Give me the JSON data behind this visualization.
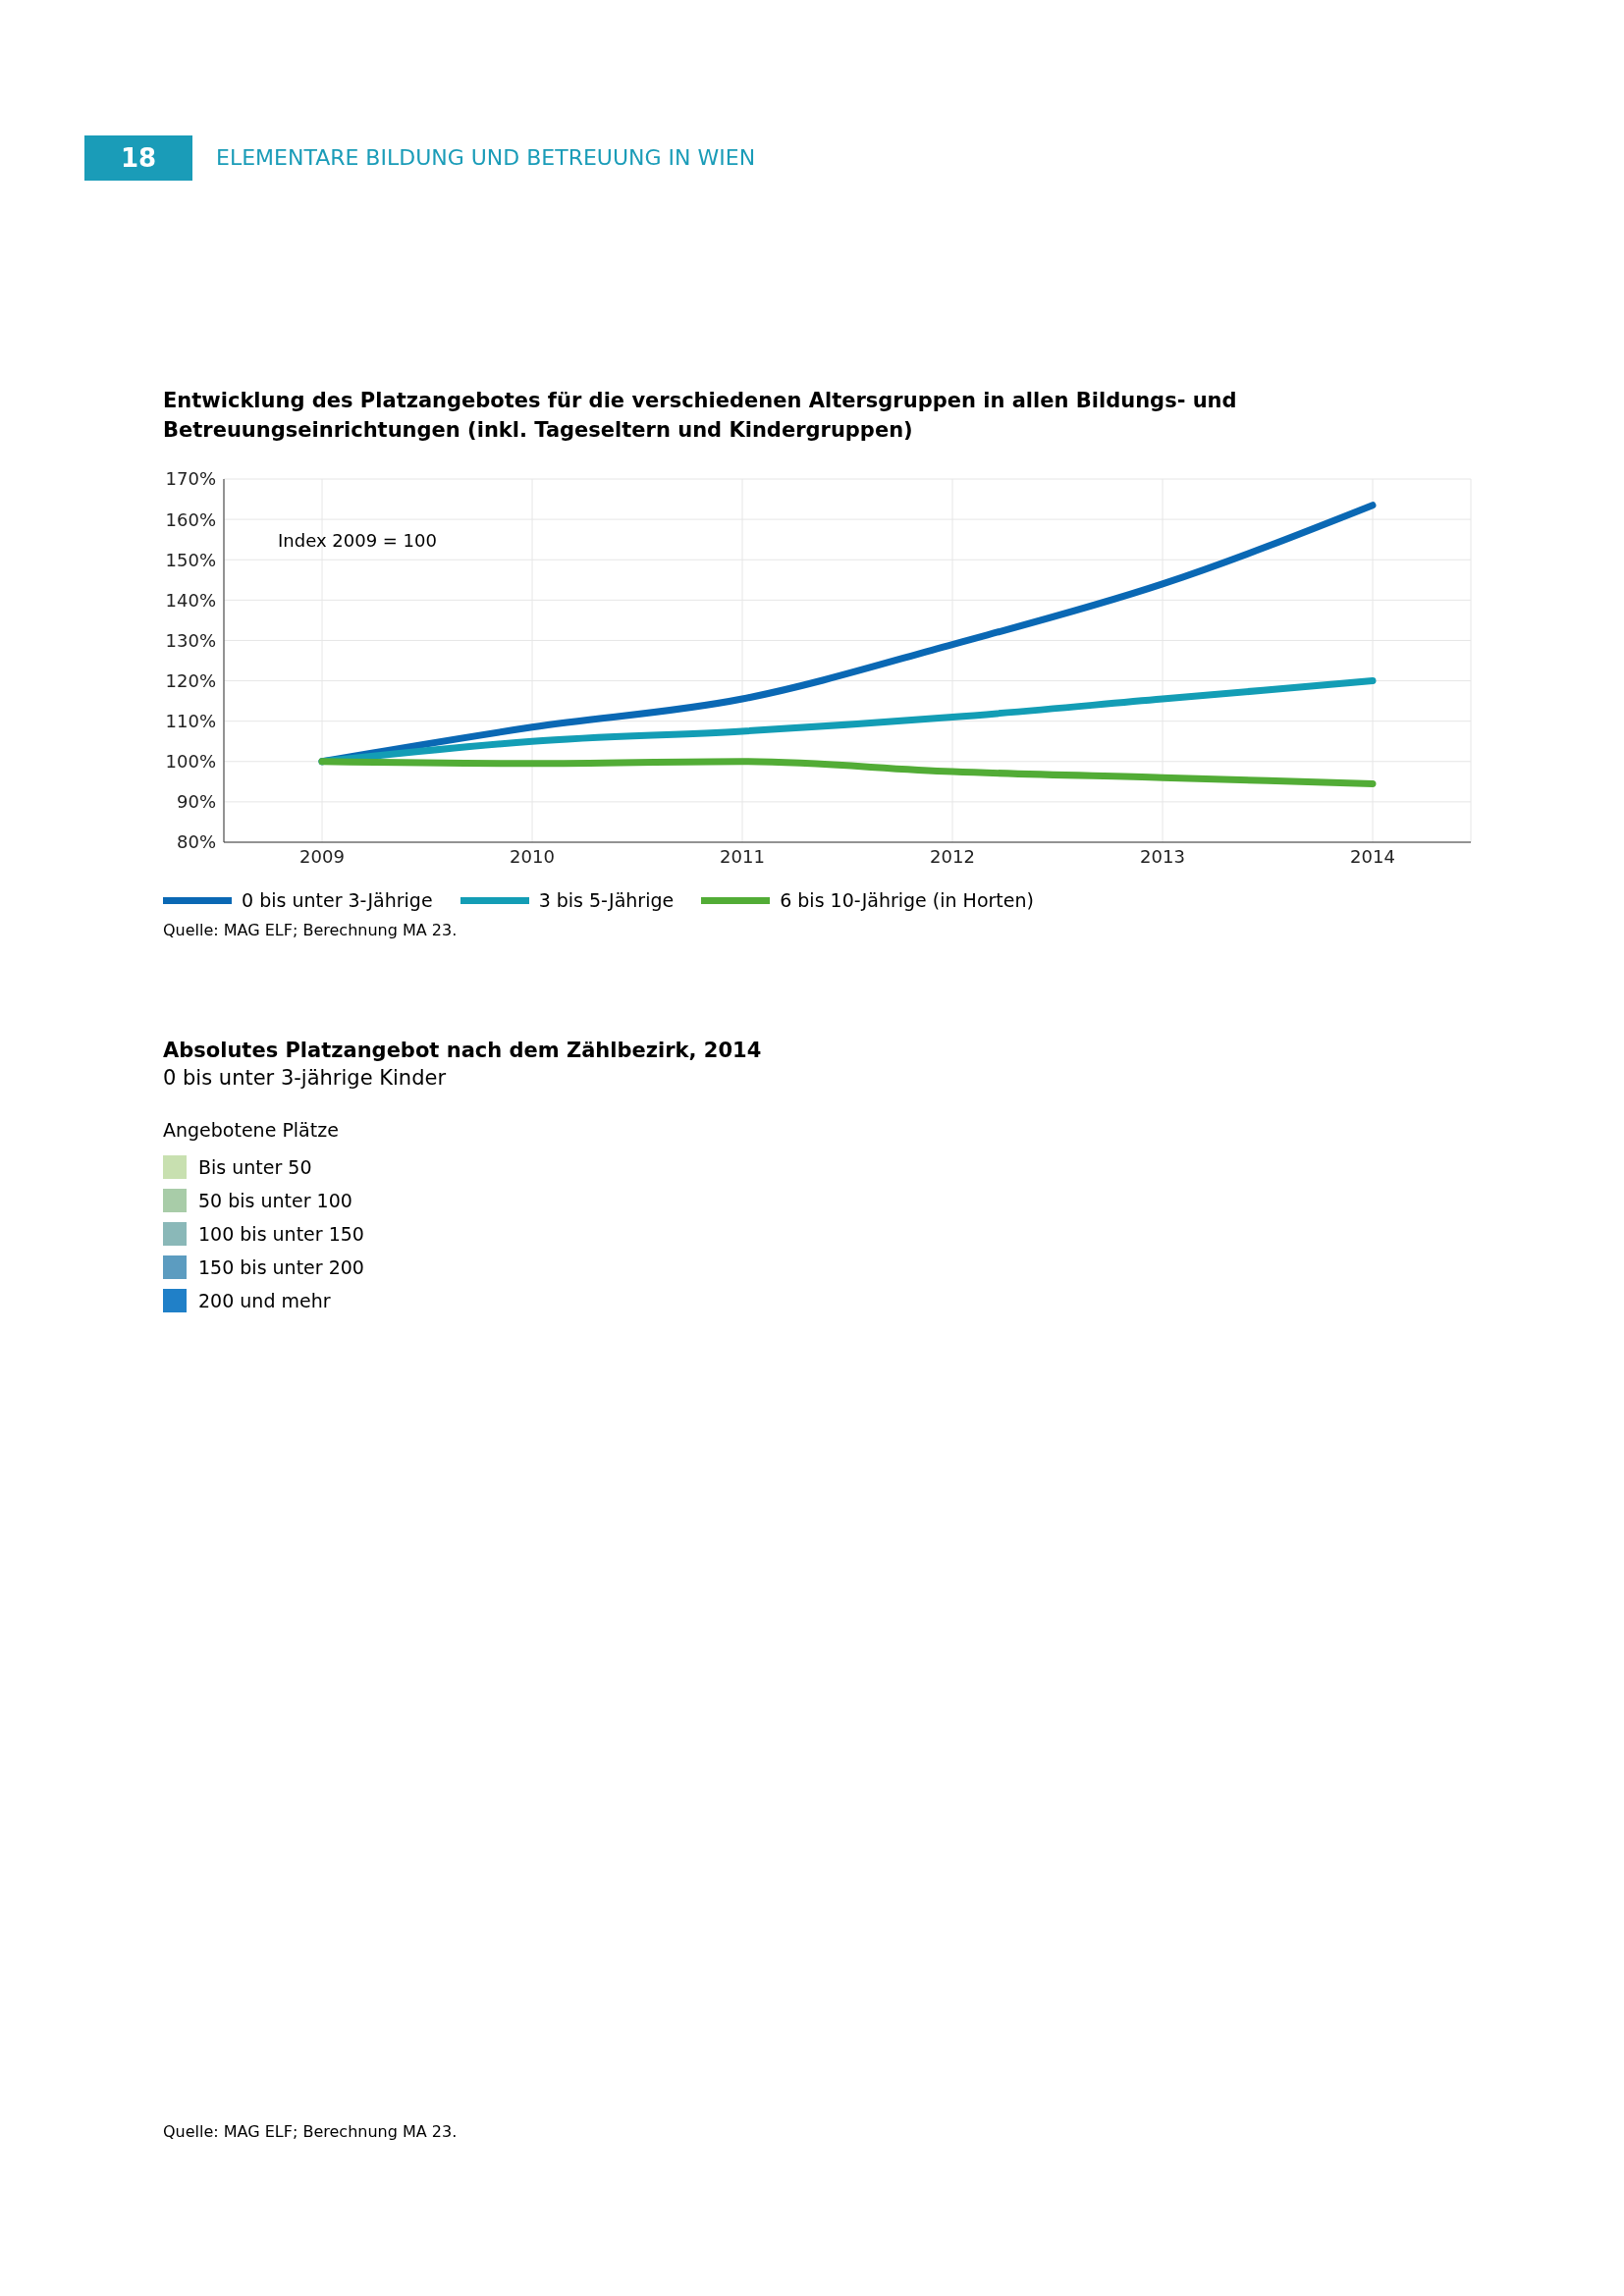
{
  "chart_data": [
    {
      "type": "line",
      "title": "Entwicklung des Platzangebotes für die verschiedenen Altersgruppen in allen Bildungs- und Betreuungseinrichtungen (inkl. Tageseltern und Kindergruppen)",
      "categories": [
        "2009",
        "2010",
        "2011",
        "2012",
        "2013",
        "2014"
      ],
      "series": [
        {
          "name": "0 bis unter 3-Jährige",
          "color": "#0a68b4",
          "values": [
            100,
            108.5,
            115.5,
            129,
            144,
            163.5
          ]
        },
        {
          "name": "3 bis 5-Jährige",
          "color": "#139db5",
          "values": [
            100,
            105,
            107.5,
            111,
            115.5,
            120
          ]
        },
        {
          "name": "6 bis 10-Jährige (in Horten)",
          "color": "#52ac36",
          "values": [
            100,
            99.5,
            100,
            97.5,
            96,
            94.5
          ]
        }
      ],
      "ylim": [
        80,
        170
      ],
      "yticks": [
        {
          "value": 80,
          "label": "80%"
        },
        {
          "value": 90,
          "label": "90%"
        },
        {
          "value": 100,
          "label": "100%"
        },
        {
          "value": 110,
          "label": "110%"
        },
        {
          "value": 120,
          "label": "120%"
        },
        {
          "value": 130,
          "label": "130%"
        },
        {
          "value": 140,
          "label": "140%"
        },
        {
          "value": 150,
          "label": "150%"
        },
        {
          "value": 160,
          "label": "160%"
        },
        {
          "value": 170,
          "label": "170%"
        }
      ],
      "grid": true,
      "legend": "bottom",
      "marker": "none",
      "line_style": "solid",
      "annotations": [
        "18",
        "ELEMENTARE BILDUNG UND BETREUUNG IN WIEN",
        "Index 2009 = 100",
        "Quelle: MAG ELF; Berechnung MA 23."
      ]
    },
    {
      "type": "other",
      "title": "Absolutes Platzangebot nach dem Zählbezirk, 2014",
      "subtitle": "0 bis unter 3-jährige Kinder",
      "legend_title": "Angebotene Plätze",
      "categories": [
        "Bis unter 50",
        "50 bis unter 100",
        "100 bis unter 150",
        "150 bis unter 200",
        "200 und mehr"
      ],
      "colors": [
        "#c8e0b0",
        "#a8cca8",
        "#8ab8b8",
        "#5c9cc0",
        "#2080c8"
      ],
      "annotations": [
        "Quelle: MAG ELF; Berechnung MA 23."
      ]
    }
  ]
}
